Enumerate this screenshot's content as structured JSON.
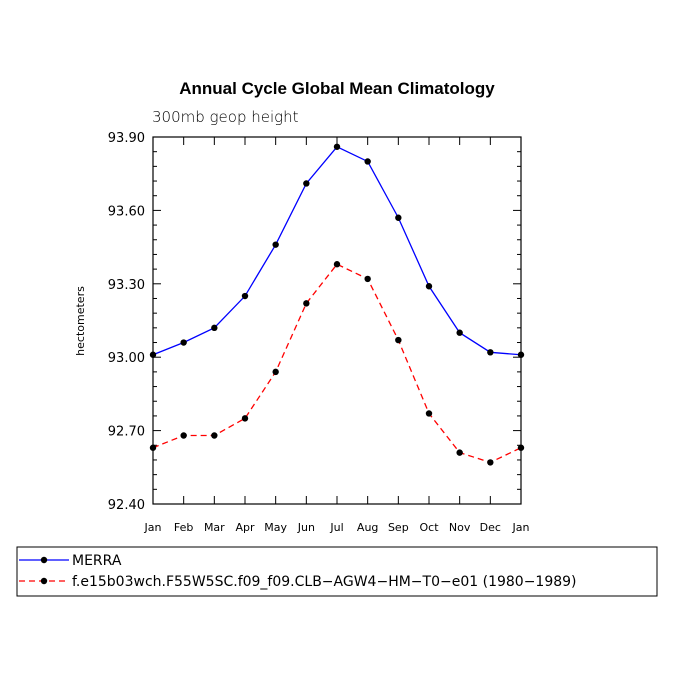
{
  "chart_data": {
    "type": "line",
    "title": "Annual Cycle Global Mean Climatology",
    "subtitle": "300mb geop height",
    "xlabel": "",
    "ylabel": "hectometers",
    "categories": [
      "Jan",
      "Feb",
      "Mar",
      "Apr",
      "May",
      "Jun",
      "Jul",
      "Aug",
      "Sep",
      "Oct",
      "Nov",
      "Dec",
      "Jan"
    ],
    "ylim": [
      92.4,
      93.9
    ],
    "yticks": [
      "92.40",
      "92.70",
      "93.00",
      "93.30",
      "93.60",
      "93.90"
    ],
    "series": [
      {
        "name": "MERRA",
        "color": "#0000ff",
        "dash": "solid",
        "values": [
          93.01,
          93.06,
          93.12,
          93.25,
          93.46,
          93.71,
          93.86,
          93.8,
          93.57,
          93.29,
          93.1,
          93.02,
          93.01
        ]
      },
      {
        "name": "f.e15b03wch.F55W5SC.f09_f09.CLB−AGW4−HM−T0−e01 (1980−1989)",
        "color": "#ff0000",
        "dash": "dashed",
        "values": [
          92.63,
          92.68,
          92.68,
          92.75,
          92.94,
          93.22,
          93.38,
          93.32,
          93.07,
          92.77,
          92.61,
          92.57,
          92.63
        ]
      }
    ],
    "legend_position": "bottom"
  }
}
